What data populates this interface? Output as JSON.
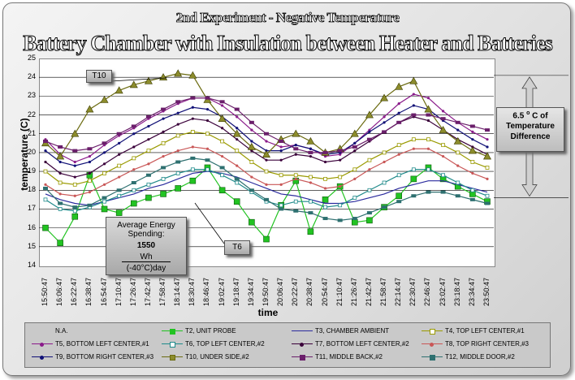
{
  "title_line1": "2nd Experiment - Negative Temperature",
  "title_line2": "Battery Chamber with Insulation between Heater and Batteries",
  "callouts": {
    "t10": "T10",
    "t6": "T6",
    "energy_title": "Average Energy Spending:",
    "energy_value": "1550",
    "energy_unit_top": "Wh",
    "energy_unit_bottom": "(-40°C)day",
    "difference_line1": "6.5",
    "difference_deg": "o",
    "difference_line1b": "C of",
    "difference_line2": "Temperature",
    "difference_line3": "Difference"
  },
  "legend_items": [
    "N.A.",
    "T2, UNIT PROBE",
    "T3, CHAMBER AMBIENT",
    "T4, TOP LEFT CENTER,#1",
    "T5, BOTTOM LEFT CENTER,#1",
    "T6, TOP LEFT CENTER,#2",
    "T7, BOTTOM LEFT CENTER,#2",
    "T8, TOP RIGHT CENTER,#3",
    "T9, BOTTOM RIGHT CENTER,#3",
    "T10, UNDER SIDE,#2",
    "T11, MIDDLE BACK,#2",
    "T12, MIDDLE DOOR,#2"
  ],
  "chart_data": {
    "type": "line",
    "title": "2nd Experiment - Negative Temperature",
    "subtitle": "Battery Chamber with Insulation between Heater and Batteries",
    "xlabel": "time",
    "ylabel": "temperature (C)",
    "ylim": [
      14,
      25
    ],
    "y_ticks": [
      14,
      15,
      16,
      17,
      18,
      19,
      20,
      21,
      22,
      23,
      24,
      25
    ],
    "grid": true,
    "legend_position": "bottom",
    "x": [
      "15:50:47",
      "16:06:47",
      "16:22:47",
      "16:38:47",
      "16:54:47",
      "17:10:47",
      "17:26:47",
      "17:42:47",
      "17:58:47",
      "18:14:47",
      "18:30:47",
      "18:46:47",
      "19:02:47",
      "19:18:47",
      "19:34:47",
      "19:50:47",
      "20:06:47",
      "20:22:47",
      "20:38:47",
      "20:54:47",
      "21:10:47",
      "21:26:47",
      "21:42:47",
      "21:58:47",
      "22:14:47",
      "22:30:47",
      "22:46:47",
      "23:02:47",
      "23:18:47",
      "23:34:47",
      "23:50:47"
    ],
    "series": [
      {
        "name": "T2, UNIT PROBE",
        "color": "#22c322",
        "marker": "square",
        "values": [
          16.0,
          15.2,
          16.6,
          18.8,
          17.0,
          16.8,
          17.3,
          17.6,
          17.8,
          18.1,
          18.5,
          19.2,
          18.0,
          17.4,
          16.3,
          15.4,
          17.2,
          18.5,
          15.8,
          17.5,
          18.2,
          16.3,
          16.4,
          17.1,
          17.7,
          18.6,
          19.2,
          18.6,
          18.2,
          17.8,
          17.4
        ]
      },
      {
        "name": "T3, CHAMBER AMBIENT",
        "color": "#2b2b9e",
        "marker": "line",
        "values": [
          17.8,
          17.5,
          17.3,
          17.2,
          17.4,
          17.6,
          17.8,
          18.1,
          18.3,
          18.6,
          18.9,
          19.0,
          18.9,
          18.7,
          18.4,
          18.1,
          17.8,
          17.7,
          17.5,
          17.3,
          17.3,
          17.4,
          17.6,
          17.8,
          18.1,
          18.3,
          18.5,
          18.5,
          18.3,
          18.1,
          17.9
        ]
      },
      {
        "name": "T4, TOP LEFT CENTER,#1",
        "color": "#9a9a00",
        "marker": "square-open",
        "values": [
          19.0,
          18.4,
          18.3,
          18.5,
          18.9,
          19.3,
          19.7,
          20.1,
          20.5,
          20.9,
          21.1,
          21.0,
          20.6,
          20.1,
          19.5,
          19.0,
          18.8,
          18.8,
          18.7,
          18.6,
          18.7,
          19.1,
          19.6,
          20.0,
          20.4,
          20.7,
          20.7,
          20.4,
          20.0,
          19.5,
          19.2
        ]
      },
      {
        "name": "T5, BOTTOM LEFT CENTER,#1",
        "color": "#8a1b8a",
        "marker": "dot",
        "values": [
          20.7,
          19.9,
          19.5,
          19.8,
          20.4,
          20.9,
          21.3,
          21.8,
          22.2,
          22.6,
          22.9,
          22.9,
          22.5,
          21.9,
          21.2,
          20.6,
          20.3,
          20.4,
          20.2,
          19.8,
          19.9,
          20.5,
          21.2,
          21.9,
          22.6,
          23.1,
          22.9,
          22.2,
          21.6,
          21.1,
          20.7
        ]
      },
      {
        "name": "T6, TOP LEFT CENTER,#2",
        "color": "#1f8a8a",
        "marker": "square-open",
        "values": [
          17.5,
          17.0,
          16.9,
          17.1,
          17.4,
          17.7,
          18.0,
          18.3,
          18.6,
          18.9,
          19.1,
          19.1,
          18.8,
          18.4,
          17.9,
          17.4,
          17.2,
          17.4,
          17.4,
          17.1,
          17.2,
          17.6,
          18.0,
          18.4,
          18.8,
          19.1,
          19.1,
          18.8,
          18.4,
          18.0,
          17.7
        ]
      },
      {
        "name": "T7, BOTTOM LEFT CENTER,#2",
        "color": "#3a003a",
        "marker": "dot",
        "values": [
          19.5,
          18.9,
          18.7,
          18.9,
          19.4,
          19.9,
          20.3,
          20.7,
          21.1,
          21.5,
          21.8,
          21.7,
          21.3,
          20.7,
          20.1,
          19.6,
          19.6,
          19.9,
          19.8,
          19.5,
          19.6,
          20.1,
          20.6,
          21.1,
          21.6,
          21.9,
          21.7,
          21.2,
          20.7,
          20.3,
          19.9
        ]
      },
      {
        "name": "T8, TOP RIGHT CENTER,#3",
        "color": "#c95757",
        "marker": "dot",
        "values": [
          18.3,
          17.8,
          17.7,
          17.9,
          18.3,
          18.7,
          19.1,
          19.4,
          19.8,
          20.1,
          20.3,
          20.2,
          19.8,
          19.3,
          18.7,
          18.3,
          18.3,
          18.6,
          18.4,
          18.1,
          18.2,
          18.6,
          19.1,
          19.5,
          19.9,
          20.2,
          20.2,
          19.8,
          19.3,
          18.9,
          18.6
        ]
      },
      {
        "name": "T9, BOTTOM RIGHT CENTER,#3",
        "color": "#111177",
        "marker": "dot",
        "values": [
          20.1,
          19.5,
          19.3,
          19.5,
          20.0,
          20.5,
          21.0,
          21.4,
          21.8,
          22.1,
          22.4,
          22.3,
          21.9,
          21.3,
          20.6,
          20.1,
          20.1,
          20.4,
          20.2,
          19.9,
          20.0,
          20.5,
          21.1,
          21.6,
          22.1,
          22.5,
          22.3,
          21.7,
          21.2,
          20.7,
          20.3
        ]
      },
      {
        "name": "T10, UNDER SIDE,#2",
        "color": "#6b6b10",
        "marker": "triangle",
        "values": [
          20.5,
          19.8,
          21.0,
          22.3,
          22.8,
          23.3,
          23.6,
          23.8,
          24.0,
          24.2,
          24.1,
          22.8,
          21.8,
          21.0,
          20.3,
          19.9,
          20.7,
          21.0,
          20.6,
          20.0,
          20.2,
          21.0,
          22.0,
          22.9,
          23.5,
          23.8,
          22.3,
          21.2,
          20.6,
          20.1,
          19.8
        ]
      },
      {
        "name": "T11, MIDDLE BACK,#2",
        "color": "#6b1f6b",
        "marker": "square-filled",
        "values": [
          20.6,
          20.3,
          20.1,
          20.2,
          20.5,
          21.0,
          21.4,
          21.9,
          22.3,
          22.7,
          22.9,
          22.9,
          22.7,
          22.3,
          21.6,
          21.0,
          20.6,
          20.2,
          20.0,
          20.0,
          20.1,
          20.3,
          20.7,
          21.1,
          21.6,
          22.0,
          22.0,
          21.8,
          21.6,
          21.4,
          21.2
        ]
      },
      {
        "name": "T12, MIDDLE DOOR,#2",
        "color": "#2e7070",
        "marker": "square-filled",
        "values": [
          18.1,
          17.3,
          17.1,
          17.2,
          17.6,
          18.0,
          18.4,
          18.8,
          19.2,
          19.5,
          19.7,
          19.6,
          19.2,
          18.6,
          18.0,
          17.5,
          17.0,
          16.9,
          16.8,
          16.5,
          16.4,
          16.5,
          16.8,
          17.1,
          17.4,
          17.7,
          17.9,
          17.9,
          17.7,
          17.5,
          17.3
        ]
      }
    ]
  }
}
